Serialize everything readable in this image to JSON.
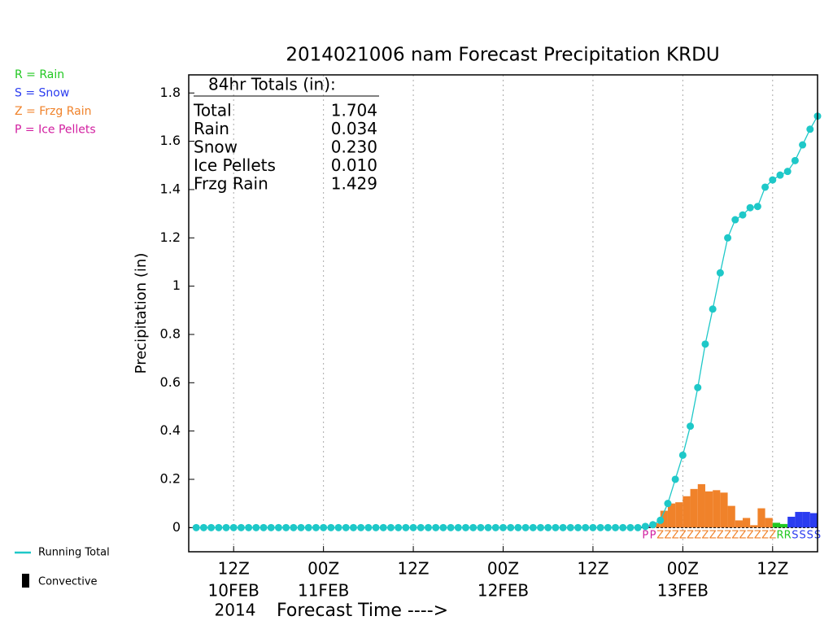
{
  "chart_data": {
    "type": "precip",
    "title": "2014021006 nam Forecast Precipitation KRDU",
    "ylabel": "Precipitation (in)",
    "xlabel": "Forecast Time ---->",
    "year_label": "2014",
    "xlim": [
      0,
      84
    ],
    "xticks": [
      {
        "value": 6,
        "label": "12Z"
      },
      {
        "value": 18,
        "label": "00Z"
      },
      {
        "value": 30,
        "label": "12Z"
      },
      {
        "value": 42,
        "label": "00Z"
      },
      {
        "value": 54,
        "label": "12Z"
      },
      {
        "value": 66,
        "label": "00Z"
      },
      {
        "value": 78,
        "label": "12Z"
      }
    ],
    "date_labels": [
      {
        "value": 6,
        "label": "10FEB"
      },
      {
        "value": 18,
        "label": "11FEB"
      },
      {
        "value": 42,
        "label": "12FEB"
      },
      {
        "value": 66,
        "label": "13FEB"
      }
    ],
    "ylim": [
      -0.1,
      1.875
    ],
    "yticks": [
      0,
      0.2,
      0.4,
      0.6,
      0.8,
      1,
      1.2,
      1.4,
      1.6,
      1.8
    ],
    "grid": true,
    "x": [
      1,
      2,
      3,
      4,
      5,
      6,
      7,
      8,
      9,
      10,
      11,
      12,
      13,
      14,
      15,
      16,
      17,
      18,
      19,
      20,
      21,
      22,
      23,
      24,
      25,
      26,
      27,
      28,
      29,
      30,
      31,
      32,
      33,
      34,
      35,
      36,
      37,
      38,
      39,
      40,
      41,
      42,
      43,
      44,
      45,
      46,
      47,
      48,
      49,
      50,
      51,
      52,
      53,
      54,
      55,
      56,
      57,
      58,
      59,
      60,
      61,
      62,
      63,
      64,
      65,
      66,
      67,
      68,
      69,
      70,
      71,
      72,
      73,
      74,
      75,
      76,
      77,
      78,
      79,
      80,
      81,
      82,
      83,
      84
    ],
    "series": [
      {
        "name": "Running Total",
        "color": "#1ec8c8",
        "values": [
          0,
          0,
          0,
          0,
          0,
          0,
          0,
          0,
          0,
          0,
          0,
          0,
          0,
          0,
          0,
          0,
          0,
          0,
          0,
          0,
          0,
          0,
          0,
          0,
          0,
          0,
          0,
          0,
          0,
          0,
          0,
          0,
          0,
          0,
          0,
          0,
          0,
          0,
          0,
          0,
          0,
          0,
          0,
          0,
          0,
          0,
          0,
          0,
          0,
          0,
          0,
          0,
          0,
          0,
          0,
          0,
          0,
          0,
          0,
          0,
          0.005,
          0.012,
          0.03,
          0.1,
          0.2,
          0.3,
          0.42,
          0.58,
          0.76,
          0.905,
          1.055,
          1.2,
          1.275,
          1.295,
          1.325,
          1.33,
          1.41,
          1.44,
          1.46,
          1.475,
          1.52,
          1.585,
          1.65,
          1.704
        ]
      },
      {
        "name": "Hourly",
        "values": [
          0,
          0,
          0,
          0,
          0,
          0,
          0,
          0,
          0,
          0,
          0,
          0,
          0,
          0,
          0,
          0,
          0,
          0,
          0,
          0,
          0,
          0,
          0,
          0,
          0,
          0,
          0,
          0,
          0,
          0,
          0,
          0,
          0,
          0,
          0,
          0,
          0,
          0,
          0,
          0,
          0,
          0,
          0,
          0,
          0,
          0,
          0,
          0,
          0,
          0,
          0,
          0,
          0,
          0,
          0,
          0,
          0,
          0,
          0,
          0,
          0.005,
          0.007,
          0.018,
          0.07,
          0.1,
          0.105,
          0.13,
          0.16,
          0.18,
          0.15,
          0.155,
          0.145,
          0.09,
          0.03,
          0.04,
          0.01,
          0.08,
          0.04,
          0.02,
          0.015,
          0.045,
          0.065,
          0.065,
          0.06
        ],
        "types": [
          null,
          null,
          null,
          null,
          null,
          null,
          null,
          null,
          null,
          null,
          null,
          null,
          null,
          null,
          null,
          null,
          null,
          null,
          null,
          null,
          null,
          null,
          null,
          null,
          null,
          null,
          null,
          null,
          null,
          null,
          null,
          null,
          null,
          null,
          null,
          null,
          null,
          null,
          null,
          null,
          null,
          null,
          null,
          null,
          null,
          null,
          null,
          null,
          null,
          null,
          null,
          null,
          null,
          null,
          null,
          null,
          null,
          null,
          null,
          null,
          "P",
          "P",
          "Z",
          "Z",
          "Z",
          "Z",
          "Z",
          "Z",
          "Z",
          "Z",
          "Z",
          "Z",
          "Z",
          "Z",
          "Z",
          "Z",
          "Z",
          "Z",
          "R",
          "R",
          "S",
          "S",
          "S",
          "S"
        ]
      }
    ],
    "type_legend": [
      {
        "key": "R",
        "label": "R = Rain",
        "color": "#22c822"
      },
      {
        "key": "S",
        "label": "S = Snow",
        "color": "#2a3cf0"
      },
      {
        "key": "Z",
        "label": "Z = Frzg Rain",
        "color": "#f0822a"
      },
      {
        "key": "P",
        "label": "P = Ice Pellets",
        "color": "#d21ea0"
      }
    ],
    "line_legend": "Running Total",
    "convective_legend": "Convective",
    "totals": {
      "header": "84hr Totals (in):",
      "rows": [
        [
          "Total",
          "1.704"
        ],
        [
          "Rain",
          "0.034"
        ],
        [
          "Snow",
          "0.230"
        ],
        [
          "Ice Pellets",
          "0.010"
        ],
        [
          "Frzg Rain",
          "1.429"
        ]
      ]
    }
  }
}
